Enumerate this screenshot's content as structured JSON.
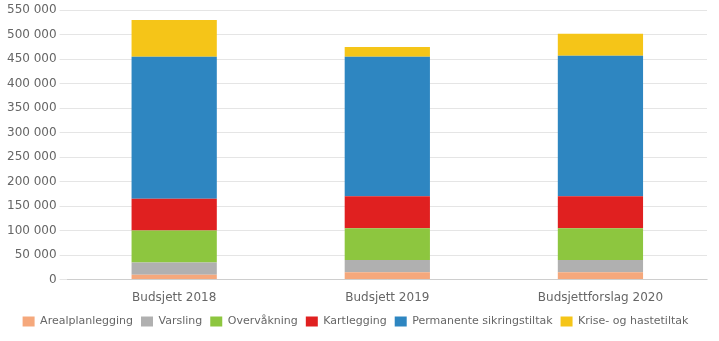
{
  "chart_data": {
    "type": "bar",
    "stacked": true,
    "categories": [
      "Budsjett 2018",
      "Budsjett 2019",
      "Budsjettforslag 2020"
    ],
    "series": [
      {
        "name": "Arealplanlegging",
        "color": "#f5a87c",
        "values": [
          10000,
          15000,
          15000
        ]
      },
      {
        "name": "Varsling",
        "color": "#b0b0b0",
        "values": [
          25000,
          25000,
          25000
        ]
      },
      {
        "name": "Overvåkning",
        "color": "#8dc63f",
        "values": [
          65000,
          65000,
          65000
        ]
      },
      {
        "name": "Kartlegging",
        "color": "#e02020",
        "values": [
          65000,
          65000,
          65000
        ]
      },
      {
        "name": "Permanente sikringstiltak",
        "color": "#2e86c1",
        "values": [
          290000,
          285000,
          287000
        ]
      },
      {
        "name": "Krise- og hastetiltak",
        "color": "#f5c518",
        "values": [
          75000,
          20000,
          45000
        ]
      }
    ],
    "ylim": [
      0,
      550000
    ],
    "yticks": [
      0,
      {
        "value": 50000,
        "label": "50 000"
      },
      {
        "value": 100000,
        "label": "100 000"
      },
      {
        "value": 150000,
        "label": "150 000"
      },
      {
        "value": 200000,
        "label": "200 000"
      },
      {
        "value": 250000,
        "label": "250 000"
      },
      {
        "value": 300000,
        "label": "300 000"
      },
      {
        "value": 350000,
        "label": "350 000"
      },
      {
        "value": 400000,
        "label": "400 000"
      },
      {
        "value": 450000,
        "label": "450 000"
      },
      {
        "value": 500000,
        "label": "500 000"
      },
      {
        "value": 550000,
        "label": "550 000"
      }
    ],
    "grid": true,
    "legend": "bottom"
  }
}
